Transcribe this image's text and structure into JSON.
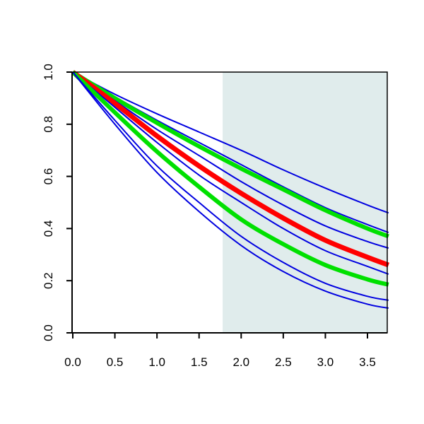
{
  "chart_data": {
    "type": "line",
    "title": "",
    "xlabel": "",
    "ylabel": "",
    "xlim": [
      0.0,
      3.75
    ],
    "ylim": [
      0.0,
      1.0
    ],
    "x_ticks": [
      "0.0",
      "0.5",
      "1.0",
      "1.5",
      "2.0",
      "2.5",
      "3.0",
      "3.5"
    ],
    "y_ticks": [
      "0.0",
      "0.2",
      "0.4",
      "0.6",
      "0.8",
      "1.0"
    ],
    "x_tick_values": [
      0.0,
      0.5,
      1.0,
      1.5,
      2.0,
      2.5,
      3.0,
      3.5
    ],
    "y_tick_values": [
      0.0,
      0.2,
      0.4,
      0.6,
      0.8,
      1.0
    ],
    "grid": false,
    "legend": "none",
    "shaded_region": {
      "x_from": 1.78,
      "x_to": 3.75,
      "color": "#e0ecec"
    },
    "x": [
      0.0,
      0.5,
      1.0,
      1.5,
      2.0,
      2.5,
      3.0,
      3.5,
      3.75
    ],
    "series": [
      {
        "color": "#0000e0",
        "width": 2,
        "values": [
          1.0,
          0.915,
          0.84,
          0.77,
          0.7,
          0.625,
          0.555,
          0.49,
          0.46
        ]
      },
      {
        "color": "#0000e0",
        "width": 2,
        "values": [
          1.0,
          0.905,
          0.815,
          0.73,
          0.645,
          0.56,
          0.48,
          0.415,
          0.385
        ]
      },
      {
        "color": "#00e000",
        "width": 6,
        "values": [
          1.0,
          0.9,
          0.805,
          0.715,
          0.63,
          0.55,
          0.47,
          0.4,
          0.37
        ]
      },
      {
        "color": "#0000e0",
        "width": 2,
        "values": [
          1.0,
          0.89,
          0.78,
          0.68,
          0.58,
          0.49,
          0.41,
          0.35,
          0.325
        ]
      },
      {
        "color": "#ff0000",
        "width": 7,
        "values": [
          1.0,
          0.88,
          0.755,
          0.64,
          0.535,
          0.44,
          0.355,
          0.29,
          0.26
        ]
      },
      {
        "color": "#0000e0",
        "width": 2,
        "values": [
          1.0,
          0.865,
          0.73,
          0.605,
          0.5,
          0.4,
          0.315,
          0.255,
          0.225
        ]
      },
      {
        "color": "#00e000",
        "width": 6,
        "values": [
          1.0,
          0.845,
          0.695,
          0.56,
          0.435,
          0.34,
          0.26,
          0.205,
          0.185
        ]
      },
      {
        "color": "#0000e0",
        "width": 2,
        "values": [
          1.0,
          0.815,
          0.64,
          0.5,
          0.37,
          0.27,
          0.19,
          0.14,
          0.125
        ]
      },
      {
        "color": "#0000e0",
        "width": 2,
        "values": [
          1.0,
          0.8,
          0.615,
          0.465,
          0.335,
          0.235,
          0.16,
          0.11,
          0.095
        ]
      }
    ]
  }
}
